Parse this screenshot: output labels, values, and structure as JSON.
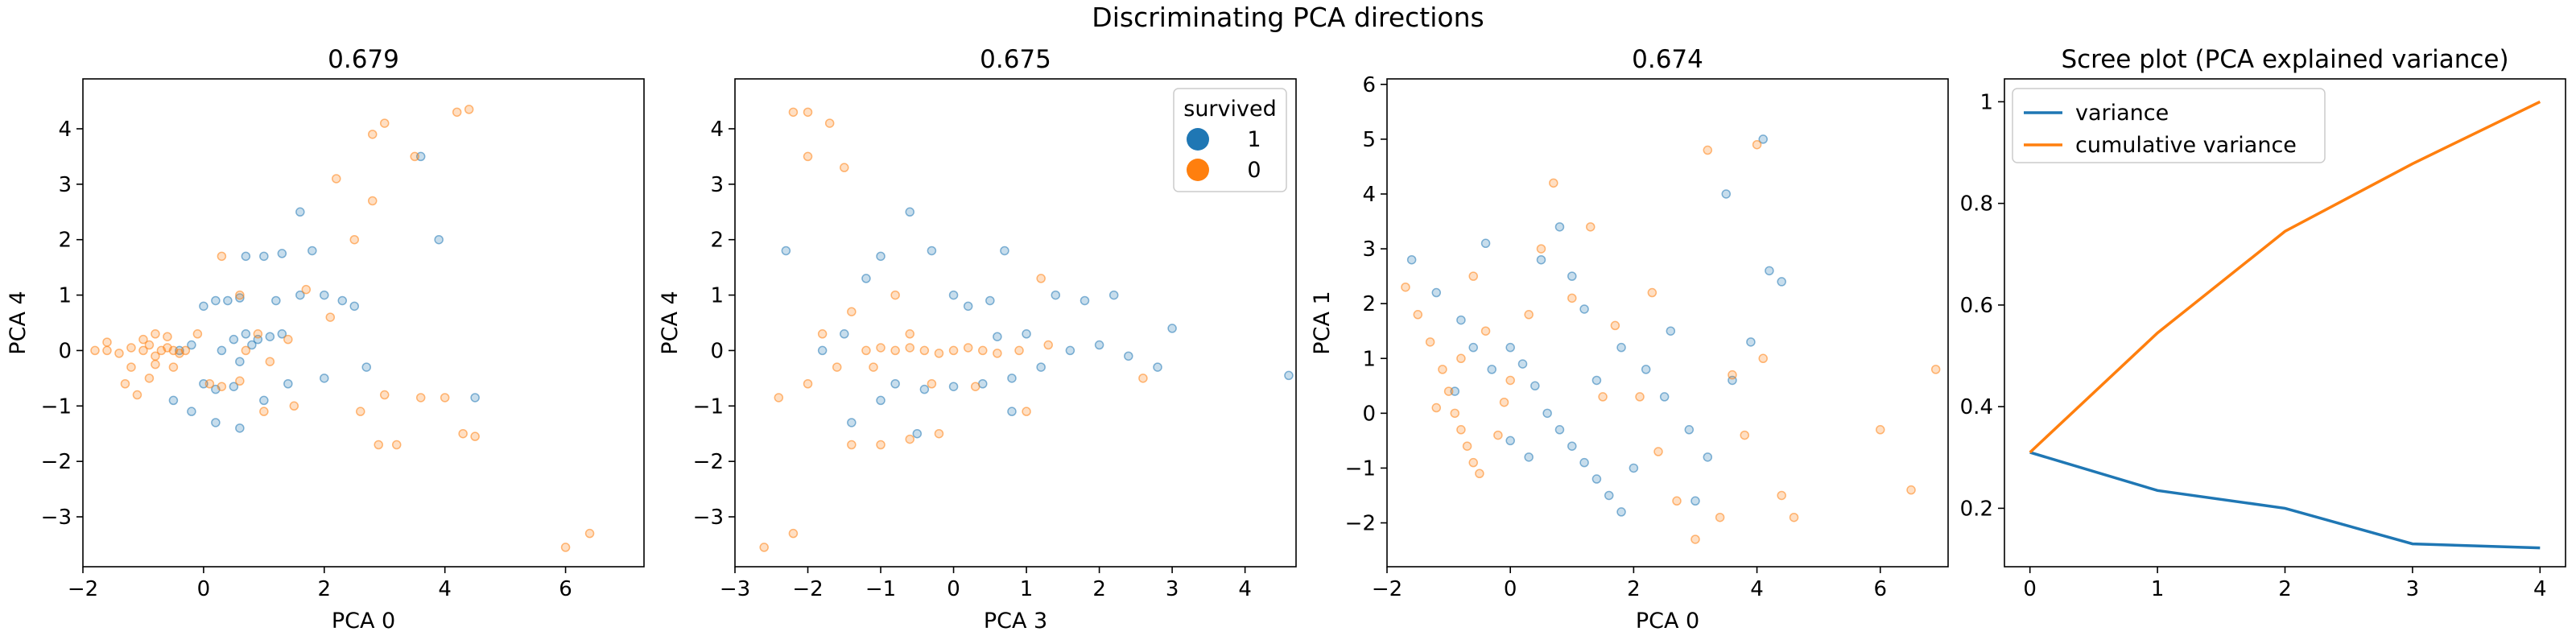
{
  "figure": {
    "suptitle": "Discriminating PCA directions"
  },
  "colors": {
    "survived_1": "#1f77b4",
    "survived_0": "#ff7f0e",
    "axis": "#000000",
    "background": "#ffffff"
  },
  "legend": {
    "title": "survived",
    "items": [
      "1",
      "0"
    ]
  },
  "chart_data": [
    {
      "type": "scatter",
      "title": "0.679",
      "xlabel": "PCA 0",
      "ylabel": "PCA 4",
      "xlim": [
        -2.0,
        7.3
      ],
      "ylim": [
        -3.9,
        4.9
      ],
      "xticks": [
        -2,
        0,
        2,
        4,
        6
      ],
      "yticks": [
        -3,
        -2,
        -1,
        0,
        1,
        2,
        3,
        4
      ],
      "legend": false,
      "series": [
        {
          "name": "1",
          "points": [
            [
              -0.4,
              0.0
            ],
            [
              -0.2,
              0.1
            ],
            [
              0.0,
              0.8
            ],
            [
              0.2,
              0.9
            ],
            [
              0.4,
              0.9
            ],
            [
              0.6,
              0.95
            ],
            [
              0.0,
              -0.6
            ],
            [
              0.2,
              -0.7
            ],
            [
              0.5,
              -0.65
            ],
            [
              0.3,
              0.0
            ],
            [
              0.5,
              0.2
            ],
            [
              0.7,
              0.3
            ],
            [
              0.9,
              0.2
            ],
            [
              1.1,
              0.25
            ],
            [
              1.3,
              0.3
            ],
            [
              0.7,
              1.7
            ],
            [
              1.0,
              1.7
            ],
            [
              1.3,
              1.75
            ],
            [
              1.6,
              2.5
            ],
            [
              1.8,
              1.8
            ],
            [
              2.0,
              1.0
            ],
            [
              2.3,
              0.9
            ],
            [
              2.5,
              0.8
            ],
            [
              -0.5,
              -0.9
            ],
            [
              -0.2,
              -1.1
            ],
            [
              0.2,
              -1.3
            ],
            [
              0.6,
              -1.4
            ],
            [
              1.0,
              -0.9
            ],
            [
              1.4,
              -0.6
            ],
            [
              1.2,
              0.9
            ],
            [
              1.6,
              1.0
            ],
            [
              2.0,
              -0.5
            ],
            [
              2.7,
              -0.3
            ],
            [
              3.6,
              3.5
            ],
            [
              3.9,
              2.0
            ],
            [
              4.5,
              -0.85
            ],
            [
              0.6,
              -0.2
            ],
            [
              0.8,
              0.1
            ]
          ]
        },
        {
          "name": "0",
          "points": [
            [
              -1.8,
              0.0
            ],
            [
              -1.6,
              0.0
            ],
            [
              -1.4,
              -0.05
            ],
            [
              -1.2,
              0.05
            ],
            [
              -1.0,
              0.0
            ],
            [
              -0.9,
              0.1
            ],
            [
              -0.8,
              -0.1
            ],
            [
              -0.7,
              0.0
            ],
            [
              -0.6,
              0.05
            ],
            [
              -0.5,
              0.0
            ],
            [
              -0.4,
              -0.05
            ],
            [
              -0.3,
              0.0
            ],
            [
              -1.0,
              0.2
            ],
            [
              -0.8,
              0.3
            ],
            [
              -0.6,
              0.25
            ],
            [
              -1.2,
              -0.3
            ],
            [
              -0.8,
              -0.25
            ],
            [
              -0.5,
              -0.3
            ],
            [
              -1.3,
              -0.6
            ],
            [
              -0.9,
              -0.5
            ],
            [
              -1.6,
              0.15
            ],
            [
              -1.1,
              -0.8
            ],
            [
              0.1,
              -0.6
            ],
            [
              0.3,
              -0.65
            ],
            [
              0.6,
              -0.55
            ],
            [
              0.7,
              0.0
            ],
            [
              0.9,
              0.3
            ],
            [
              1.4,
              0.2
            ],
            [
              -0.1,
              0.3
            ],
            [
              1.0,
              -1.1
            ],
            [
              1.5,
              -1.0
            ],
            [
              2.6,
              -1.1
            ],
            [
              3.0,
              -0.8
            ],
            [
              3.6,
              -0.85
            ],
            [
              4.0,
              -0.85
            ],
            [
              2.9,
              -1.7
            ],
            [
              3.2,
              -1.7
            ],
            [
              4.3,
              -1.5
            ],
            [
              4.5,
              -1.55
            ],
            [
              2.2,
              3.1
            ],
            [
              2.8,
              3.9
            ],
            [
              3.0,
              4.1
            ],
            [
              3.5,
              3.5
            ],
            [
              4.2,
              4.3
            ],
            [
              4.4,
              4.35
            ],
            [
              2.5,
              2.0
            ],
            [
              2.8,
              2.7
            ],
            [
              1.7,
              1.1
            ],
            [
              2.1,
              0.6
            ],
            [
              6.0,
              -3.55
            ],
            [
              6.4,
              -3.3
            ],
            [
              1.1,
              -0.2
            ],
            [
              0.6,
              1.0
            ],
            [
              0.3,
              1.7
            ]
          ]
        }
      ]
    },
    {
      "type": "scatter",
      "title": "0.675",
      "xlabel": "PCA 3",
      "ylabel": "PCA 4",
      "xlim": [
        -3.0,
        4.7
      ],
      "ylim": [
        -3.9,
        4.9
      ],
      "xticks": [
        -3,
        -2,
        -1,
        0,
        1,
        2,
        3,
        4
      ],
      "yticks": [
        -3,
        -2,
        -1,
        0,
        1,
        2,
        3,
        4
      ],
      "legend": true,
      "series": [
        {
          "name": "1",
          "points": [
            [
              -2.3,
              1.8
            ],
            [
              -1.8,
              0.0
            ],
            [
              -1.5,
              0.3
            ],
            [
              -1.2,
              1.3
            ],
            [
              -1.0,
              1.7
            ],
            [
              -0.6,
              2.5
            ],
            [
              -0.3,
              1.8
            ],
            [
              0.0,
              1.0
            ],
            [
              0.2,
              0.8
            ],
            [
              0.5,
              0.9
            ],
            [
              0.7,
              1.8
            ],
            [
              -0.8,
              -0.6
            ],
            [
              -0.4,
              -0.7
            ],
            [
              0.0,
              -0.65
            ],
            [
              0.4,
              -0.6
            ],
            [
              0.8,
              -0.5
            ],
            [
              1.2,
              -0.3
            ],
            [
              1.6,
              0.0
            ],
            [
              2.0,
              0.1
            ],
            [
              2.4,
              -0.1
            ],
            [
              2.8,
              -0.3
            ],
            [
              3.0,
              0.4
            ],
            [
              4.6,
              -0.45
            ],
            [
              1.0,
              0.3
            ],
            [
              0.6,
              0.25
            ],
            [
              -1.0,
              -0.9
            ],
            [
              -1.4,
              -1.3
            ],
            [
              -0.5,
              -1.5
            ],
            [
              1.4,
              1.0
            ],
            [
              1.8,
              0.9
            ],
            [
              2.2,
              1.0
            ],
            [
              0.8,
              -1.1
            ]
          ]
        },
        {
          "name": "0",
          "points": [
            [
              -2.6,
              -3.55
            ],
            [
              -2.2,
              -3.3
            ],
            [
              -2.2,
              4.3
            ],
            [
              -2.0,
              4.3
            ],
            [
              -1.7,
              4.1
            ],
            [
              -1.5,
              3.3
            ],
            [
              -2.0,
              3.5
            ],
            [
              -2.4,
              -0.85
            ],
            [
              -2.0,
              -0.6
            ],
            [
              -1.6,
              -0.3
            ],
            [
              -1.2,
              0.0
            ],
            [
              -1.0,
              0.05
            ],
            [
              -0.8,
              0.0
            ],
            [
              -0.6,
              0.05
            ],
            [
              -0.4,
              0.0
            ],
            [
              -0.2,
              -0.05
            ],
            [
              0.0,
              0.0
            ],
            [
              0.2,
              0.05
            ],
            [
              0.4,
              0.0
            ],
            [
              0.6,
              -0.05
            ],
            [
              -1.4,
              -1.7
            ],
            [
              -1.0,
              -1.7
            ],
            [
              -0.6,
              -1.6
            ],
            [
              -0.2,
              -1.5
            ],
            [
              -0.6,
              0.3
            ],
            [
              -0.3,
              -0.6
            ],
            [
              0.3,
              -0.65
            ],
            [
              -1.8,
              0.3
            ],
            [
              -1.4,
              0.7
            ],
            [
              1.2,
              1.3
            ],
            [
              1.0,
              -1.1
            ],
            [
              -0.8,
              1.0
            ],
            [
              -1.1,
              -0.3
            ],
            [
              0.9,
              0.0
            ],
            [
              1.3,
              0.1
            ],
            [
              2.6,
              -0.5
            ]
          ]
        }
      ]
    },
    {
      "type": "scatter",
      "title": "0.674",
      "xlabel": "PCA 0",
      "ylabel": "PCA 1",
      "xlim": [
        -2.0,
        7.1
      ],
      "ylim": [
        -2.8,
        6.1
      ],
      "xticks": [
        -2,
        0,
        2,
        4,
        6
      ],
      "yticks": [
        -2,
        -1,
        0,
        1,
        2,
        3,
        4,
        5,
        6
      ],
      "legend": false,
      "series": [
        {
          "name": "1",
          "points": [
            [
              -1.6,
              2.8
            ],
            [
              -1.2,
              2.2
            ],
            [
              -0.8,
              1.7
            ],
            [
              -0.6,
              1.2
            ],
            [
              -0.3,
              0.8
            ],
            [
              0.0,
              1.2
            ],
            [
              0.2,
              0.9
            ],
            [
              0.4,
              0.5
            ],
            [
              0.6,
              0.0
            ],
            [
              0.8,
              -0.3
            ],
            [
              1.0,
              -0.6
            ],
            [
              1.2,
              -0.9
            ],
            [
              1.4,
              -1.2
            ],
            [
              1.6,
              -1.5
            ],
            [
              1.8,
              -1.8
            ],
            [
              0.5,
              2.8
            ],
            [
              0.8,
              3.4
            ],
            [
              1.2,
              1.9
            ],
            [
              1.8,
              1.2
            ],
            [
              2.2,
              0.8
            ],
            [
              2.5,
              0.3
            ],
            [
              2.9,
              -0.3
            ],
            [
              3.2,
              -0.8
            ],
            [
              3.6,
              0.6
            ],
            [
              3.9,
              1.3
            ],
            [
              4.2,
              2.6
            ],
            [
              4.4,
              2.4
            ],
            [
              3.5,
              4.0
            ],
            [
              4.1,
              5.0
            ],
            [
              0.0,
              -0.5
            ],
            [
              0.3,
              -0.8
            ],
            [
              1.0,
              2.5
            ],
            [
              1.4,
              0.6
            ],
            [
              2.0,
              -1.0
            ],
            [
              -0.4,
              3.1
            ],
            [
              -0.9,
              0.4
            ],
            [
              2.6,
              1.5
            ],
            [
              3.0,
              -1.6
            ]
          ]
        },
        {
          "name": "0",
          "points": [
            [
              -1.7,
              2.3
            ],
            [
              -1.5,
              1.8
            ],
            [
              -1.3,
              1.3
            ],
            [
              -1.1,
              0.8
            ],
            [
              -1.0,
              0.4
            ],
            [
              -0.9,
              0.0
            ],
            [
              -0.8,
              -0.3
            ],
            [
              -0.7,
              -0.6
            ],
            [
              -0.6,
              -0.9
            ],
            [
              -0.5,
              -1.1
            ],
            [
              -0.2,
              -0.4
            ],
            [
              -0.1,
              0.2
            ],
            [
              0.0,
              0.6
            ],
            [
              -0.4,
              1.5
            ],
            [
              -0.6,
              2.5
            ],
            [
              0.5,
              3.0
            ],
            [
              0.7,
              4.2
            ],
            [
              1.0,
              2.1
            ],
            [
              1.3,
              3.4
            ],
            [
              1.7,
              1.6
            ],
            [
              2.1,
              0.3
            ],
            [
              2.4,
              -0.7
            ],
            [
              2.7,
              -1.6
            ],
            [
              3.0,
              -2.3
            ],
            [
              3.4,
              -1.9
            ],
            [
              3.8,
              -0.4
            ],
            [
              4.1,
              1.0
            ],
            [
              3.2,
              4.8
            ],
            [
              4.0,
              4.9
            ],
            [
              6.0,
              -0.3
            ],
            [
              6.5,
              -1.4
            ],
            [
              6.9,
              0.8
            ],
            [
              4.6,
              -1.9
            ],
            [
              4.4,
              -1.5
            ],
            [
              1.5,
              0.3
            ],
            [
              0.3,
              1.8
            ],
            [
              -1.2,
              0.1
            ],
            [
              -0.8,
              1.0
            ],
            [
              2.3,
              2.2
            ],
            [
              3.6,
              0.7
            ]
          ]
        }
      ]
    },
    {
      "type": "line",
      "title": "Scree plot (PCA explained variance)",
      "xlabel": "",
      "ylabel": "",
      "xlim": [
        -0.2,
        4.2
      ],
      "ylim": [
        0.085,
        1.045
      ],
      "xticks": [
        0,
        1,
        2,
        3,
        4
      ],
      "yticks": [
        0.2,
        0.4,
        0.6,
        0.8,
        1.0
      ],
      "legend": true,
      "x": [
        0,
        1,
        2,
        3,
        4
      ],
      "series": [
        {
          "name": "variance",
          "values": [
            0.31,
            0.235,
            0.2,
            0.13,
            0.122
          ]
        },
        {
          "name": "cumulative variance",
          "values": [
            0.31,
            0.545,
            0.745,
            0.878,
            1.0
          ]
        }
      ]
    }
  ]
}
